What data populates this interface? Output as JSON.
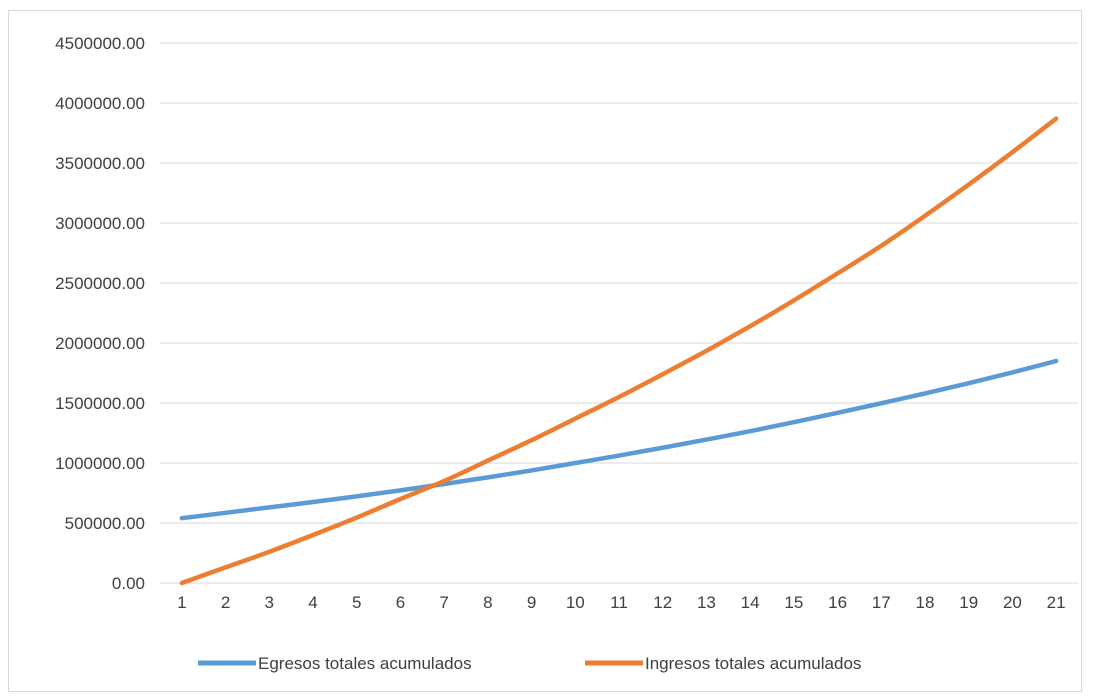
{
  "chart_data": {
    "type": "line",
    "title": "",
    "xlabel": "",
    "ylabel": "",
    "x": [
      1,
      2,
      3,
      4,
      5,
      6,
      7,
      8,
      9,
      10,
      11,
      12,
      13,
      14,
      15,
      16,
      17,
      18,
      19,
      20,
      21
    ],
    "ylim": [
      0,
      4500000
    ],
    "yticks": [
      "0.00",
      "500000.00",
      "1000000.00",
      "1500000.00",
      "2000000.00",
      "2500000.00",
      "3000000.00",
      "3500000.00",
      "4000000.00",
      "4500000.00"
    ],
    "grid": true,
    "legend_position": "bottom",
    "series": [
      {
        "name": "Egresos totales acumulados",
        "color": "#5b9bd5",
        "values": [
          540000,
          585000,
          630000,
          675000,
          722000,
          772000,
          825000,
          880000,
          938000,
          1000000,
          1062000,
          1127000,
          1195000,
          1265000,
          1340000,
          1418000,
          1498000,
          1580000,
          1665000,
          1755000,
          1850000
        ]
      },
      {
        "name": "Ingresos totales acumulados",
        "color": "#ed7d31",
        "values": [
          0,
          130000,
          260000,
          400000,
          545000,
          700000,
          850000,
          1020000,
          1190000,
          1370000,
          1550000,
          1740000,
          1935000,
          2140000,
          2355000,
          2580000,
          2810000,
          3060000,
          3320000,
          3590000,
          3870000
        ]
      }
    ]
  }
}
